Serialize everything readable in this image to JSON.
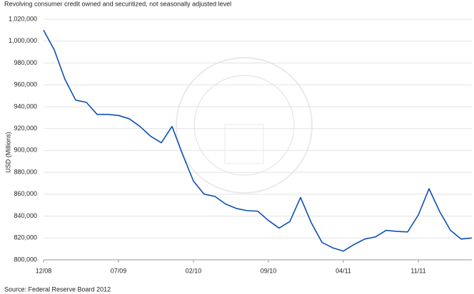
{
  "chart_data": {
    "type": "line",
    "title": "Revolving consumer credit owned and securitized, not seasonally adjusted level",
    "y_label": "USD (Millions)",
    "source": "Source: Federal Reserve Board 2012",
    "categories": [
      "12/08",
      null,
      null,
      null,
      null,
      null,
      null,
      "07/09",
      null,
      null,
      null,
      null,
      null,
      null,
      "02/10",
      null,
      null,
      null,
      null,
      null,
      null,
      "09/10",
      null,
      null,
      null,
      null,
      null,
      null,
      "04/11",
      null,
      null,
      null,
      null,
      null,
      null,
      "11/11",
      null,
      null,
      null,
      null,
      null
    ],
    "series": [
      {
        "name": "Revolving consumer credit",
        "color": "#0b4fb3",
        "values": [
          1010000,
          992000,
          965000,
          946000,
          944000,
          933000,
          933000,
          932000,
          929000,
          922000,
          913000,
          907000,
          922000,
          896000,
          872000,
          860000,
          858000,
          851000,
          847000,
          845000,
          844500,
          836000,
          829000,
          835000,
          857000,
          834000,
          816000,
          811000,
          808000,
          814000,
          819000,
          821000,
          827000,
          826000,
          825500,
          841000,
          865000,
          844000,
          827000,
          819000,
          820000
        ]
      }
    ],
    "ylim": [
      800000,
      1020000
    ],
    "yticks": [
      {
        "value": 800000,
        "label": "800,000"
      },
      {
        "value": 820000,
        "label": "820,000"
      },
      {
        "value": 840000,
        "label": "840,000"
      },
      {
        "value": 860000,
        "label": "860,000"
      },
      {
        "value": 880000,
        "label": "880,000"
      },
      {
        "value": 900000,
        "label": "900,000"
      },
      {
        "value": 920000,
        "label": "920,000"
      },
      {
        "value": 940000,
        "label": "940,000"
      },
      {
        "value": 960000,
        "label": "960,000"
      },
      {
        "value": 980000,
        "label": "980,000"
      },
      {
        "value": 1000000,
        "label": "1,000,000"
      },
      {
        "value": 1020000,
        "label": "1,020,000"
      }
    ],
    "grid": true
  }
}
